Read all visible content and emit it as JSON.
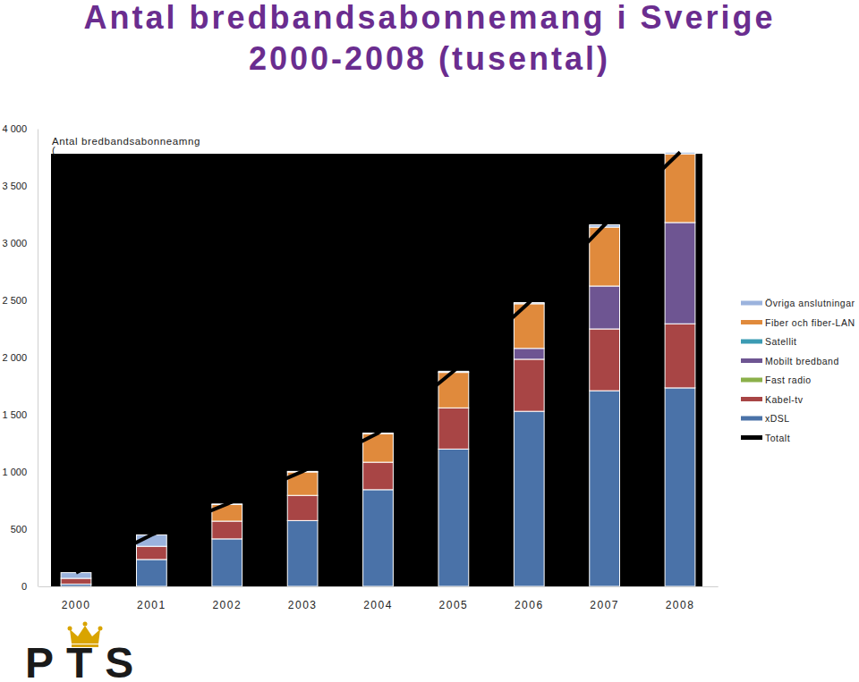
{
  "chart_data": {
    "type": "bar",
    "stacked": true,
    "title": [
      "Antal bredbandsabonnemang i Sverige",
      "2000-2008 (tusental)"
    ],
    "annotations": [
      "Antal bredbandsabonneamng",
      "("
    ],
    "categories": [
      "2000",
      "2001",
      "2002",
      "2003",
      "2004",
      "2005",
      "2006",
      "2007",
      "2008"
    ],
    "series": [
      {
        "name": "xDSL",
        "color": "#4a72a8",
        "values": [
          20,
          235,
          415,
          575,
          845,
          1200,
          1530,
          1710,
          1735
        ]
      },
      {
        "name": "Kabel-tv",
        "color": "#a84545",
        "values": [
          50,
          115,
          155,
          220,
          240,
          360,
          455,
          540,
          560
        ]
      },
      {
        "name": "Fast radio",
        "color": "#8bb04a",
        "values": [
          0,
          0,
          0,
          0,
          0,
          0,
          0,
          0,
          0
        ]
      },
      {
        "name": "Mobilt bredband",
        "color": "#6e5592",
        "values": [
          0,
          0,
          0,
          0,
          0,
          0,
          95,
          375,
          885
        ]
      },
      {
        "name": "Satellit",
        "color": "#3b9bb3",
        "values": [
          0,
          0,
          0,
          0,
          0,
          0,
          0,
          0,
          0
        ]
      },
      {
        "name": "Fiber och fiber-LAN",
        "color": "#e08a3c",
        "values": [
          0,
          0,
          145,
          205,
          250,
          310,
          390,
          515,
          600
        ]
      },
      {
        "name": "Övriga anslutningar",
        "color": "#9bb3dd",
        "values": [
          50,
          100,
          5,
          5,
          5,
          10,
          10,
          20,
          15
        ]
      },
      {
        "name": "Totalt",
        "type": "line",
        "color": "#000000",
        "values": [
          120,
          450,
          720,
          1005,
          1340,
          1880,
          2480,
          3160,
          3795
        ]
      }
    ],
    "ylim": [
      0,
      4000
    ],
    "yticks": [
      0,
      500,
      {
        "value": 1000,
        "label": "1 000"
      },
      {
        "value": 1500,
        "label": "1 500"
      },
      {
        "value": 2000,
        "label": "2 000"
      },
      {
        "value": 2500,
        "label": "2 500"
      },
      {
        "value": 3000,
        "label": "3 000"
      },
      {
        "value": 3500,
        "label": "3 500"
      },
      {
        "value": 4000,
        "label": "4 000"
      }
    ],
    "grid": false,
    "legend": "right"
  },
  "logo": "PTS"
}
